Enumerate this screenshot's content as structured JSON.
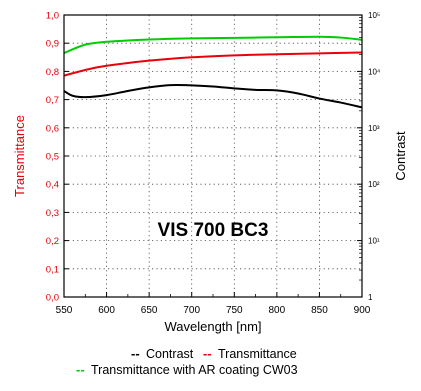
{
  "chart_data": {
    "type": "line",
    "title": "",
    "annotation": "VIS 700 BC3",
    "xlabel": "Wavelength [nm]",
    "ylabel_left": "Transmittance",
    "ylabel_right": "Contrast",
    "xlim": [
      550,
      900
    ],
    "ylim_left": [
      0.0,
      1.0
    ],
    "ylim_right": [
      1,
      100000
    ],
    "right_axis_scale": "log",
    "x_ticks": [
      "550",
      "600",
      "650",
      "700",
      "750",
      "800",
      "850",
      "900"
    ],
    "y_ticks_left": [
      "0,0",
      "0,1",
      "0,2",
      "0,3",
      "0,4",
      "0,5",
      "0,6",
      "0,7",
      "0,8",
      "0,9",
      "1,0"
    ],
    "y_ticks_right": [
      {
        "value": 1,
        "label": "1"
      },
      {
        "value": 10,
        "label": "10¹"
      },
      {
        "value": 100,
        "label": "10²"
      },
      {
        "value": 1000,
        "label": "10³"
      },
      {
        "value": 10000,
        "label": "10⁴"
      },
      {
        "value": 100000,
        "label": "10⁵"
      }
    ],
    "grid": true,
    "legend_position": "bottom",
    "legend": {
      "row1": [
        {
          "series": "Contrast",
          "label": "Contrast",
          "color": "#000000"
        },
        {
          "series": "Transmittance",
          "label": "Transmittance",
          "color": "#e8000b"
        }
      ],
      "row2": [
        {
          "series": "Transmittance with AR coating CW03",
          "label": "Transmittance with AR coating CW03",
          "color": "#00cc00"
        }
      ]
    },
    "series": [
      {
        "name": "Transmittance with AR coating CW03",
        "axis": "left",
        "color": "#00cc00",
        "x": [
          550,
          575,
          600,
          650,
          700,
          750,
          800,
          850,
          875,
          900
        ],
        "y": [
          0.865,
          0.895,
          0.905,
          0.913,
          0.917,
          0.919,
          0.921,
          0.923,
          0.92,
          0.912
        ]
      },
      {
        "name": "Transmittance",
        "axis": "left",
        "color": "#e8000b",
        "x": [
          550,
          575,
          600,
          650,
          700,
          750,
          800,
          850,
          900
        ],
        "y": [
          0.785,
          0.805,
          0.82,
          0.838,
          0.85,
          0.857,
          0.861,
          0.864,
          0.867
        ]
      },
      {
        "name": "Contrast",
        "axis": "right",
        "color": "#000000",
        "x": [
          550,
          560,
          575,
          600,
          625,
          650,
          675,
          700,
          725,
          750,
          775,
          800,
          825,
          850,
          875,
          900
        ],
        "y": [
          4500,
          3700,
          3500,
          3800,
          4500,
          5200,
          5700,
          5650,
          5400,
          5000,
          4700,
          4600,
          4050,
          3300,
          2800,
          2300
        ]
      }
    ]
  }
}
